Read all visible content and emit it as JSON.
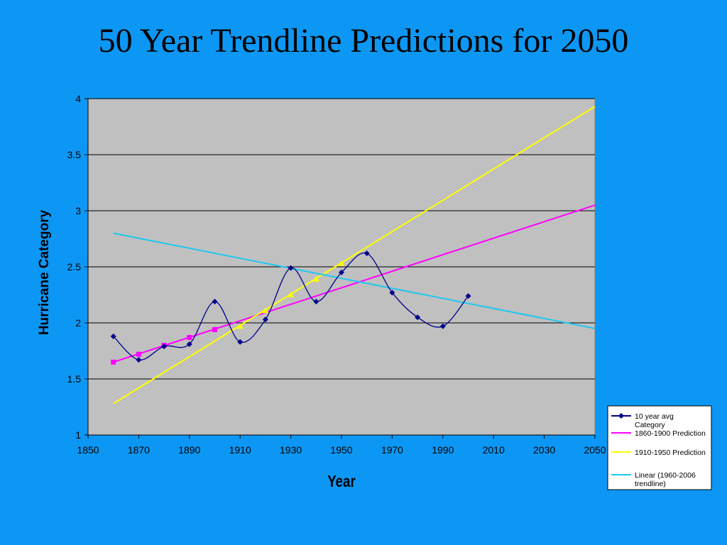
{
  "slide": {
    "title": "50 Year Trendline Predictions for 2050"
  },
  "colors": {
    "background": "#0d97f4",
    "plot_area": "#c0c0c0",
    "series_avg": "#00008b",
    "pred_1860_1900": "#ff00ff",
    "pred_1910_1950": "#ffff00",
    "linear_1960_2006": "#1ec8f0"
  },
  "chart_data": {
    "type": "line",
    "title": "",
    "xlabel": "Year",
    "ylabel": "Hurricane Category",
    "xlim": [
      1850,
      2050
    ],
    "ylim": [
      1,
      4
    ],
    "x_ticks": [
      "1850",
      "1870",
      "1890",
      "1910",
      "1930",
      "1950",
      "1970",
      "1990",
      "2010",
      "2030",
      "2050"
    ],
    "y_ticks": [
      "1",
      "1.5",
      "2",
      "2.5",
      "3",
      "3.5",
      "4"
    ],
    "grid": "horizontal major gridlines",
    "legend_position": "bottom-right",
    "series": [
      {
        "name": "10 year avg Category",
        "legend_lines": [
          "10 year avg",
          "Category"
        ],
        "marker": "diamond",
        "smooth": true,
        "color": "#00008b",
        "points": [
          [
            1860,
            1.88
          ],
          [
            1870,
            1.67
          ],
          [
            1880,
            1.79
          ],
          [
            1890,
            1.81
          ],
          [
            1900,
            2.19
          ],
          [
            1910,
            1.83
          ],
          [
            1920,
            2.03
          ],
          [
            1930,
            2.49
          ],
          [
            1940,
            2.19
          ],
          [
            1950,
            2.45
          ],
          [
            1960,
            2.62
          ],
          [
            1970,
            2.27
          ],
          [
            1980,
            2.05
          ],
          [
            1990,
            1.97
          ],
          [
            2000,
            2.24
          ]
        ]
      },
      {
        "name": "1860-1900 Prediction",
        "legend_lines": [
          "1860-1900 Prediction"
        ],
        "marker": "square",
        "color": "#ff00ff",
        "markers": [
          [
            1860,
            1.65
          ],
          [
            1870,
            1.72
          ],
          [
            1880,
            1.8
          ],
          [
            1890,
            1.87
          ],
          [
            1900,
            1.94
          ]
        ],
        "line": [
          [
            1860,
            1.65
          ],
          [
            2050,
            3.05
          ]
        ]
      },
      {
        "name": "1910-1950 Prediction",
        "legend_lines": [
          "1910-1950 Prediction"
        ],
        "marker": "triangle",
        "color": "#ffff00",
        "markers": [
          [
            1910,
            1.97
          ],
          [
            1920,
            2.11
          ],
          [
            1930,
            2.25
          ],
          [
            1940,
            2.39
          ],
          [
            1950,
            2.53
          ]
        ],
        "line": [
          [
            1860,
            1.28
          ],
          [
            2050,
            3.93
          ]
        ]
      },
      {
        "name": "Linear (1960-2006 trendline)",
        "legend_lines": [
          "Linear (1960-2006",
          "trendline)"
        ],
        "marker": "none",
        "color": "#1ec8f0",
        "line": [
          [
            1860,
            2.8
          ],
          [
            2050,
            1.95
          ]
        ]
      }
    ]
  }
}
